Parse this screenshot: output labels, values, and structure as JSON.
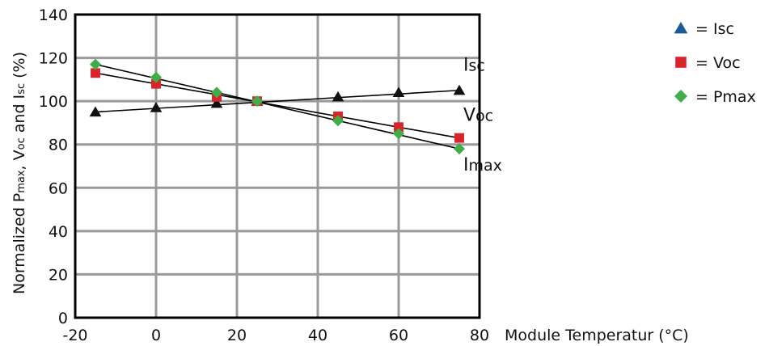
{
  "chart_data": {
    "type": "line",
    "title": "",
    "xlabel": "Module Temperatur (°C)",
    "ylabel": "Normalized Pmax, Voc and Isc (%)",
    "ylabel_parts": {
      "p": "Normalized P",
      "p_sub": "max",
      "v": ", V",
      "v_sub": "oc",
      "i": " and I",
      "i_sub": "sc",
      "tail": " (%)"
    },
    "xlim": [
      -20,
      80
    ],
    "ylim": [
      0,
      140
    ],
    "xticks": [
      -20,
      0,
      20,
      40,
      60,
      80
    ],
    "yticks": [
      0,
      20,
      40,
      60,
      80,
      100,
      120,
      140
    ],
    "grid": true,
    "legend_position": "top-right",
    "series": [
      {
        "name": "Isc",
        "legend_label": "= Isc",
        "color": "#1a5b96",
        "plot_color": "#111111",
        "marker": "triangle",
        "x": [
          -15,
          0,
          15,
          25,
          45,
          60,
          75
        ],
        "y": [
          95,
          97,
          99,
          100,
          102,
          104,
          105
        ]
      },
      {
        "name": "Voc",
        "legend_label": "= Voc",
        "color": "#d9252a",
        "marker": "square",
        "x": [
          -15,
          0,
          15,
          25,
          45,
          60,
          75
        ],
        "y": [
          113,
          108,
          102,
          100,
          93,
          88,
          83
        ]
      },
      {
        "name": "Pmax",
        "legend_label": "= Pmax",
        "color": "#3fae49",
        "marker": "diamond",
        "x": [
          -15,
          0,
          15,
          25,
          45,
          60,
          75
        ],
        "y": [
          117,
          111,
          104,
          100,
          91,
          85,
          78
        ]
      }
    ],
    "trend_lines": [
      {
        "x": [
          -15,
          75
        ],
        "y": [
          95,
          105
        ]
      },
      {
        "x": [
          -15,
          75
        ],
        "y": [
          113,
          83
        ]
      },
      {
        "x": [
          -15,
          75
        ],
        "y": [
          117,
          78
        ]
      }
    ],
    "curve_labels": [
      {
        "main": "I",
        "sub": "sc",
        "x": 76,
        "y": 114
      },
      {
        "main": "V",
        "sub": "oc",
        "x": 76,
        "y": 91
      },
      {
        "main": "I",
        "sub": "max",
        "x": 76,
        "y": 68
      }
    ]
  }
}
